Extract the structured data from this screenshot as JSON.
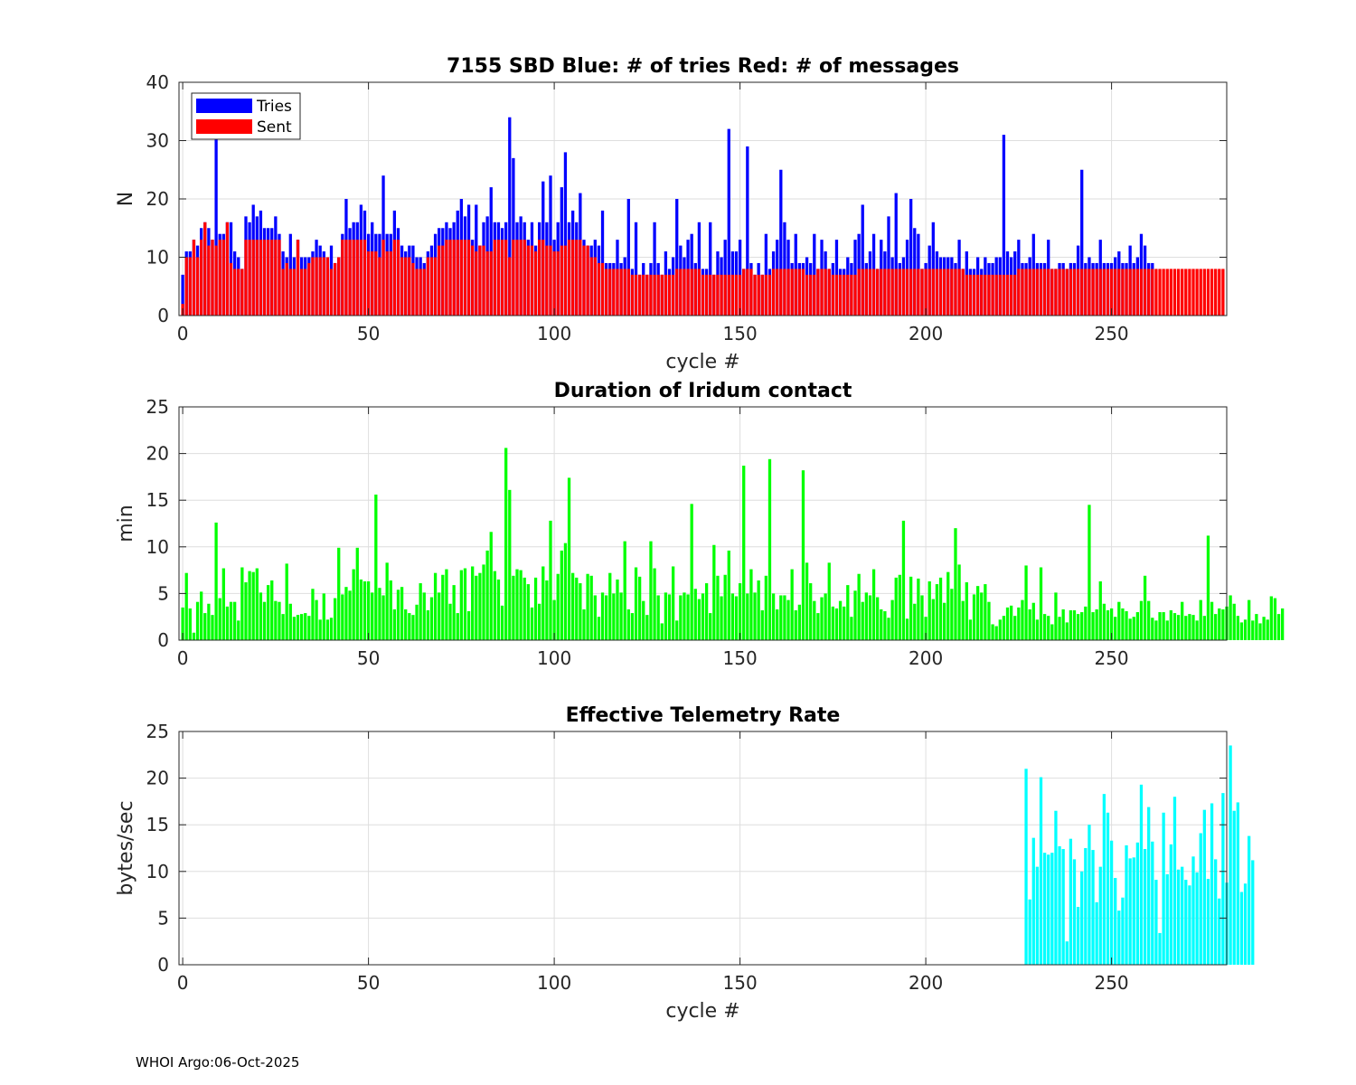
{
  "footer": "WHOI Argo:06-Oct-2025",
  "chart_data": [
    {
      "type": "bar",
      "title": "7155 SBD  Blue: # of tries   Red: # of messages",
      "xlabel": "cycle #",
      "ylabel": "N",
      "xlim": [
        -1,
        281
      ],
      "ylim": [
        0,
        40
      ],
      "xticks": [
        0,
        50,
        100,
        150,
        200,
        250
      ],
      "yticks": [
        0,
        10,
        20,
        30,
        40
      ],
      "grid": true,
      "legend_position": "top-left",
      "series": [
        {
          "name": "Tries",
          "color": "#0000ff",
          "values": [
            7,
            11,
            11,
            13,
            12,
            15,
            16,
            15,
            13,
            31,
            14,
            14,
            16,
            16,
            11,
            10,
            8,
            17,
            16,
            19,
            17,
            18,
            15,
            15,
            15,
            17,
            14,
            11,
            10,
            14,
            10,
            13,
            10,
            10,
            10,
            11,
            13,
            12,
            11,
            10,
            12,
            9,
            10,
            14,
            20,
            15,
            16,
            16,
            19,
            18,
            14,
            16,
            14,
            14,
            24,
            14,
            14,
            18,
            15,
            12,
            11,
            12,
            12,
            10,
            10,
            9,
            11,
            12,
            14,
            15,
            15,
            16,
            15,
            16,
            18,
            20,
            17,
            19,
            13,
            19,
            12,
            16,
            17,
            22,
            16,
            16,
            15,
            16,
            34,
            27,
            16,
            17,
            16,
            13,
            16,
            12,
            16,
            23,
            16,
            24,
            13,
            16,
            22,
            28,
            16,
            18,
            16,
            21,
            13,
            12,
            12,
            13,
            12,
            18,
            9,
            9,
            9,
            13,
            9,
            10,
            20,
            8,
            16,
            7,
            9,
            7,
            9,
            16,
            9,
            7,
            11,
            8,
            10,
            20,
            12,
            10,
            13,
            14,
            9,
            16,
            8,
            8,
            16,
            7,
            11,
            10,
            13,
            32,
            11,
            11,
            13,
            8,
            29,
            9,
            7,
            9,
            7,
            14,
            8,
            11,
            13,
            25,
            16,
            13,
            9,
            14,
            9,
            9,
            10,
            9,
            14,
            8,
            13,
            11,
            8,
            9,
            13,
            8,
            8,
            10,
            9,
            13,
            14,
            19,
            9,
            11,
            14,
            8,
            13,
            11,
            17,
            10,
            21,
            9,
            10,
            13,
            20,
            15,
            14,
            8,
            9,
            12,
            16,
            11,
            10,
            10,
            10,
            10,
            9,
            13,
            8,
            11,
            8,
            8,
            10,
            8,
            10,
            9,
            9,
            10,
            10,
            31,
            11,
            10,
            11,
            13,
            9,
            9,
            10,
            14,
            9,
            9,
            9,
            13,
            8,
            8,
            9,
            9,
            8,
            9,
            9,
            12,
            25,
            9,
            10,
            9,
            9,
            13,
            9,
            9,
            9,
            10,
            11,
            9,
            9,
            12,
            9,
            10,
            14,
            12,
            9,
            9
          ]
        },
        {
          "name": "Sent",
          "color": "#ff0000",
          "values": [
            2,
            10,
            10,
            13,
            10,
            13,
            16,
            12,
            13,
            12,
            13,
            13,
            16,
            9,
            8,
            8,
            8,
            13,
            13,
            13,
            13,
            13,
            13,
            13,
            13,
            13,
            13,
            8,
            9,
            8,
            8,
            13,
            8,
            8,
            9,
            10,
            10,
            10,
            10,
            10,
            8,
            9,
            10,
            13,
            13,
            13,
            13,
            13,
            13,
            13,
            11,
            11,
            11,
            10,
            13,
            11,
            11,
            13,
            13,
            10,
            10,
            10,
            9,
            8,
            8,
            8,
            10,
            10,
            10,
            12,
            12,
            13,
            13,
            13,
            13,
            13,
            13,
            13,
            12,
            11,
            12,
            12,
            11,
            11,
            13,
            13,
            13,
            13,
            10,
            13,
            13,
            13,
            13,
            12,
            12,
            11,
            13,
            13,
            12,
            12,
            11,
            11,
            12,
            12,
            13,
            13,
            13,
            13,
            12,
            12,
            10,
            10,
            9,
            9,
            8,
            8,
            8,
            8,
            8,
            8,
            8,
            7,
            7,
            7,
            7,
            7,
            7,
            7,
            7,
            7,
            7,
            7,
            7,
            8,
            8,
            8,
            8,
            8,
            8,
            8,
            7,
            7,
            7,
            7,
            7,
            7,
            7,
            7,
            7,
            7,
            7,
            8,
            8,
            8,
            7,
            7,
            7,
            7,
            7,
            8,
            8,
            8,
            8,
            8,
            8,
            8,
            8,
            8,
            7,
            7,
            7,
            8,
            8,
            8,
            8,
            7,
            7,
            7,
            7,
            7,
            7,
            7,
            8,
            8,
            8,
            8,
            8,
            8,
            8,
            8,
            8,
            8,
            8,
            8,
            8,
            8,
            8,
            8,
            8,
            8,
            8,
            8,
            8,
            8,
            8,
            8,
            8,
            8,
            8,
            8,
            8,
            7,
            7,
            7,
            7,
            7,
            7,
            7,
            7,
            7,
            7,
            7,
            7,
            7,
            7,
            8,
            8,
            8,
            8,
            8,
            8,
            8,
            8,
            8,
            8,
            8,
            8,
            8,
            8,
            8,
            8,
            8,
            8,
            8,
            8,
            8,
            8,
            8,
            8,
            8,
            8,
            8,
            8,
            8,
            8,
            8,
            8,
            8,
            8,
            8,
            8,
            8,
            8,
            8,
            8,
            8,
            8,
            8,
            8,
            8,
            8,
            8,
            8,
            8,
            8,
            8,
            8,
            8,
            8,
            8,
            8
          ]
        }
      ]
    },
    {
      "type": "bar",
      "title": "Duration of Iridum contact",
      "xlabel": "",
      "ylabel": "min",
      "xlim": [
        -1,
        281
      ],
      "ylim": [
        0,
        25
      ],
      "xticks": [
        0,
        50,
        100,
        150,
        200,
        250
      ],
      "yticks": [
        0,
        5,
        10,
        15,
        20,
        25
      ],
      "grid": true,
      "series": [
        {
          "name": "Duration",
          "color": "#00ff00",
          "values": [
            3.5,
            7.2,
            3.4,
            0.8,
            4.1,
            5.2,
            2.9,
            3.9,
            2.7,
            12.6,
            4.5,
            7.7,
            3.6,
            4.1,
            4.1,
            2.1,
            7.8,
            6.2,
            7.4,
            7.3,
            7.7,
            5.1,
            4.1,
            5.9,
            6.4,
            4.2,
            4.1,
            2.8,
            8.2,
            3.9,
            2.5,
            2.7,
            2.8,
            2.9,
            2.6,
            5.5,
            4.3,
            2.2,
            5.0,
            2.2,
            2.4,
            4.5,
            9.9,
            4.9,
            5.7,
            5.3,
            7.6,
            9.9,
            6.5,
            6.3,
            6.3,
            5.1,
            15.6,
            5.6,
            4.8,
            8.3,
            6.4,
            3.3,
            5.4,
            5.7,
            3.3,
            2.9,
            2.7,
            3.8,
            6.1,
            5.1,
            3.2,
            4.6,
            7.2,
            5.1,
            7.0,
            7.6,
            3.9,
            5.9,
            2.9,
            7.5,
            7.7,
            3.1,
            7.9,
            6.9,
            7.2,
            8.1,
            9.6,
            11.6,
            7.4,
            6.5,
            3.7,
            20.6,
            16.1,
            6.9,
            7.6,
            7.5,
            6.7,
            6.0,
            3.5,
            6.7,
            3.9,
            7.9,
            6.4,
            12.8,
            4.3,
            7.1,
            9.6,
            10.4,
            17.4,
            7.2,
            6.7,
            6.1,
            3.3,
            7.1,
            6.9,
            4.8,
            2.5,
            5.1,
            4.8,
            7.2,
            5.0,
            6.5,
            5.1,
            10.6,
            3.3,
            2.9,
            7.8,
            6.8,
            4.2,
            2.7,
            10.6,
            7.7,
            4.8,
            1.8,
            5.1,
            4.9,
            7.9,
            2.1,
            4.8,
            5.1,
            4.9,
            14.6,
            5.5,
            4.4,
            5.0,
            6.1,
            2.9,
            10.2,
            6.9,
            4.7,
            7.0,
            9.6,
            5.0,
            4.7,
            6.1,
            18.7,
            5.0,
            7.6,
            5.1,
            6.4,
            3.2,
            6.9,
            19.4,
            5.0,
            3.3,
            4.8,
            4.8,
            4.3,
            7.6,
            3.2,
            3.8,
            18.2,
            8.3,
            6.1,
            4.2,
            2.9,
            4.6,
            5.0,
            8.3,
            3.6,
            3.4,
            4.2,
            3.6,
            5.9,
            2.5,
            5.3,
            7.1,
            4.1,
            5.1,
            4.8,
            7.6,
            4.6,
            3.3,
            3.1,
            2.4,
            4.3,
            6.7,
            7.0,
            12.8,
            2.3,
            6.8,
            3.9,
            6.6,
            4.8,
            2.5,
            6.3,
            4.4,
            6.0,
            6.7,
            4.0,
            7.3,
            5.5,
            12.0,
            8.1,
            4.2,
            6.2,
            2.2,
            4.9,
            5.8,
            5.1,
            6.0,
            4.1,
            1.7,
            1.5,
            2.2,
            2.6,
            3.5,
            3.7,
            2.6,
            3.5,
            4.3,
            8.0,
            3.3,
            4.0,
            2.2,
            7.8,
            2.8,
            2.6,
            1.7,
            5.1,
            2.5,
            3.3,
            1.9,
            3.2,
            3.2,
            2.8,
            3.0,
            3.6,
            14.5,
            3.0,
            3.3,
            6.3,
            3.9,
            3.2,
            3.4,
            2.5,
            4.1,
            3.4,
            3.1,
            2.3,
            2.5,
            3.0,
            4.2,
            6.9,
            4.2,
            2.4,
            2.1,
            3.0,
            3.0,
            2.1,
            3.2,
            2.9,
            2.7,
            4.1,
            2.6,
            2.8,
            2.7,
            2.1,
            4.3,
            2.6,
            11.2,
            4.1,
            2.8,
            3.4,
            3.3,
            3.6,
            4.8,
            3.9,
            2.6,
            1.9,
            2.2,
            4.3,
            2.1,
            2.8,
            1.8,
            2.5,
            2.2,
            4.7,
            4.5,
            2.8,
            3.4
          ]
        }
      ]
    },
    {
      "type": "bar",
      "title": "Effective Telemetry Rate",
      "xlabel": "cycle #",
      "ylabel": "bytes/sec",
      "xlim": [
        -1,
        281
      ],
      "ylim": [
        0,
        25
      ],
      "xticks": [
        0,
        50,
        100,
        150,
        200,
        250
      ],
      "yticks": [
        0,
        5,
        10,
        15,
        20,
        25
      ],
      "grid": true,
      "x_start": 227,
      "series": [
        {
          "name": "Rate",
          "color": "#00ffff",
          "values": [
            21.0,
            7.0,
            13.6,
            10.5,
            20.1,
            12.0,
            11.8,
            12.0,
            16.5,
            12.7,
            12.4,
            2.5,
            13.5,
            11.3,
            6.2,
            10.0,
            12.5,
            15.0,
            12.3,
            6.7,
            10.5,
            18.3,
            16.3,
            13.3,
            9.3,
            5.8,
            7.2,
            12.8,
            11.4,
            11.5,
            13.1,
            19.3,
            12.4,
            16.9,
            13.2,
            9.1,
            3.4,
            16.3,
            9.7,
            12.9,
            18.0,
            10.2,
            10.5,
            9.1,
            8.5,
            11.6,
            9.9,
            14.1,
            16.6,
            9.2,
            17.3,
            11.3,
            7.1,
            18.4,
            8.8,
            23.5,
            16.5,
            17.4,
            7.8,
            8.7,
            13.8,
            11.2
          ]
        }
      ]
    }
  ]
}
